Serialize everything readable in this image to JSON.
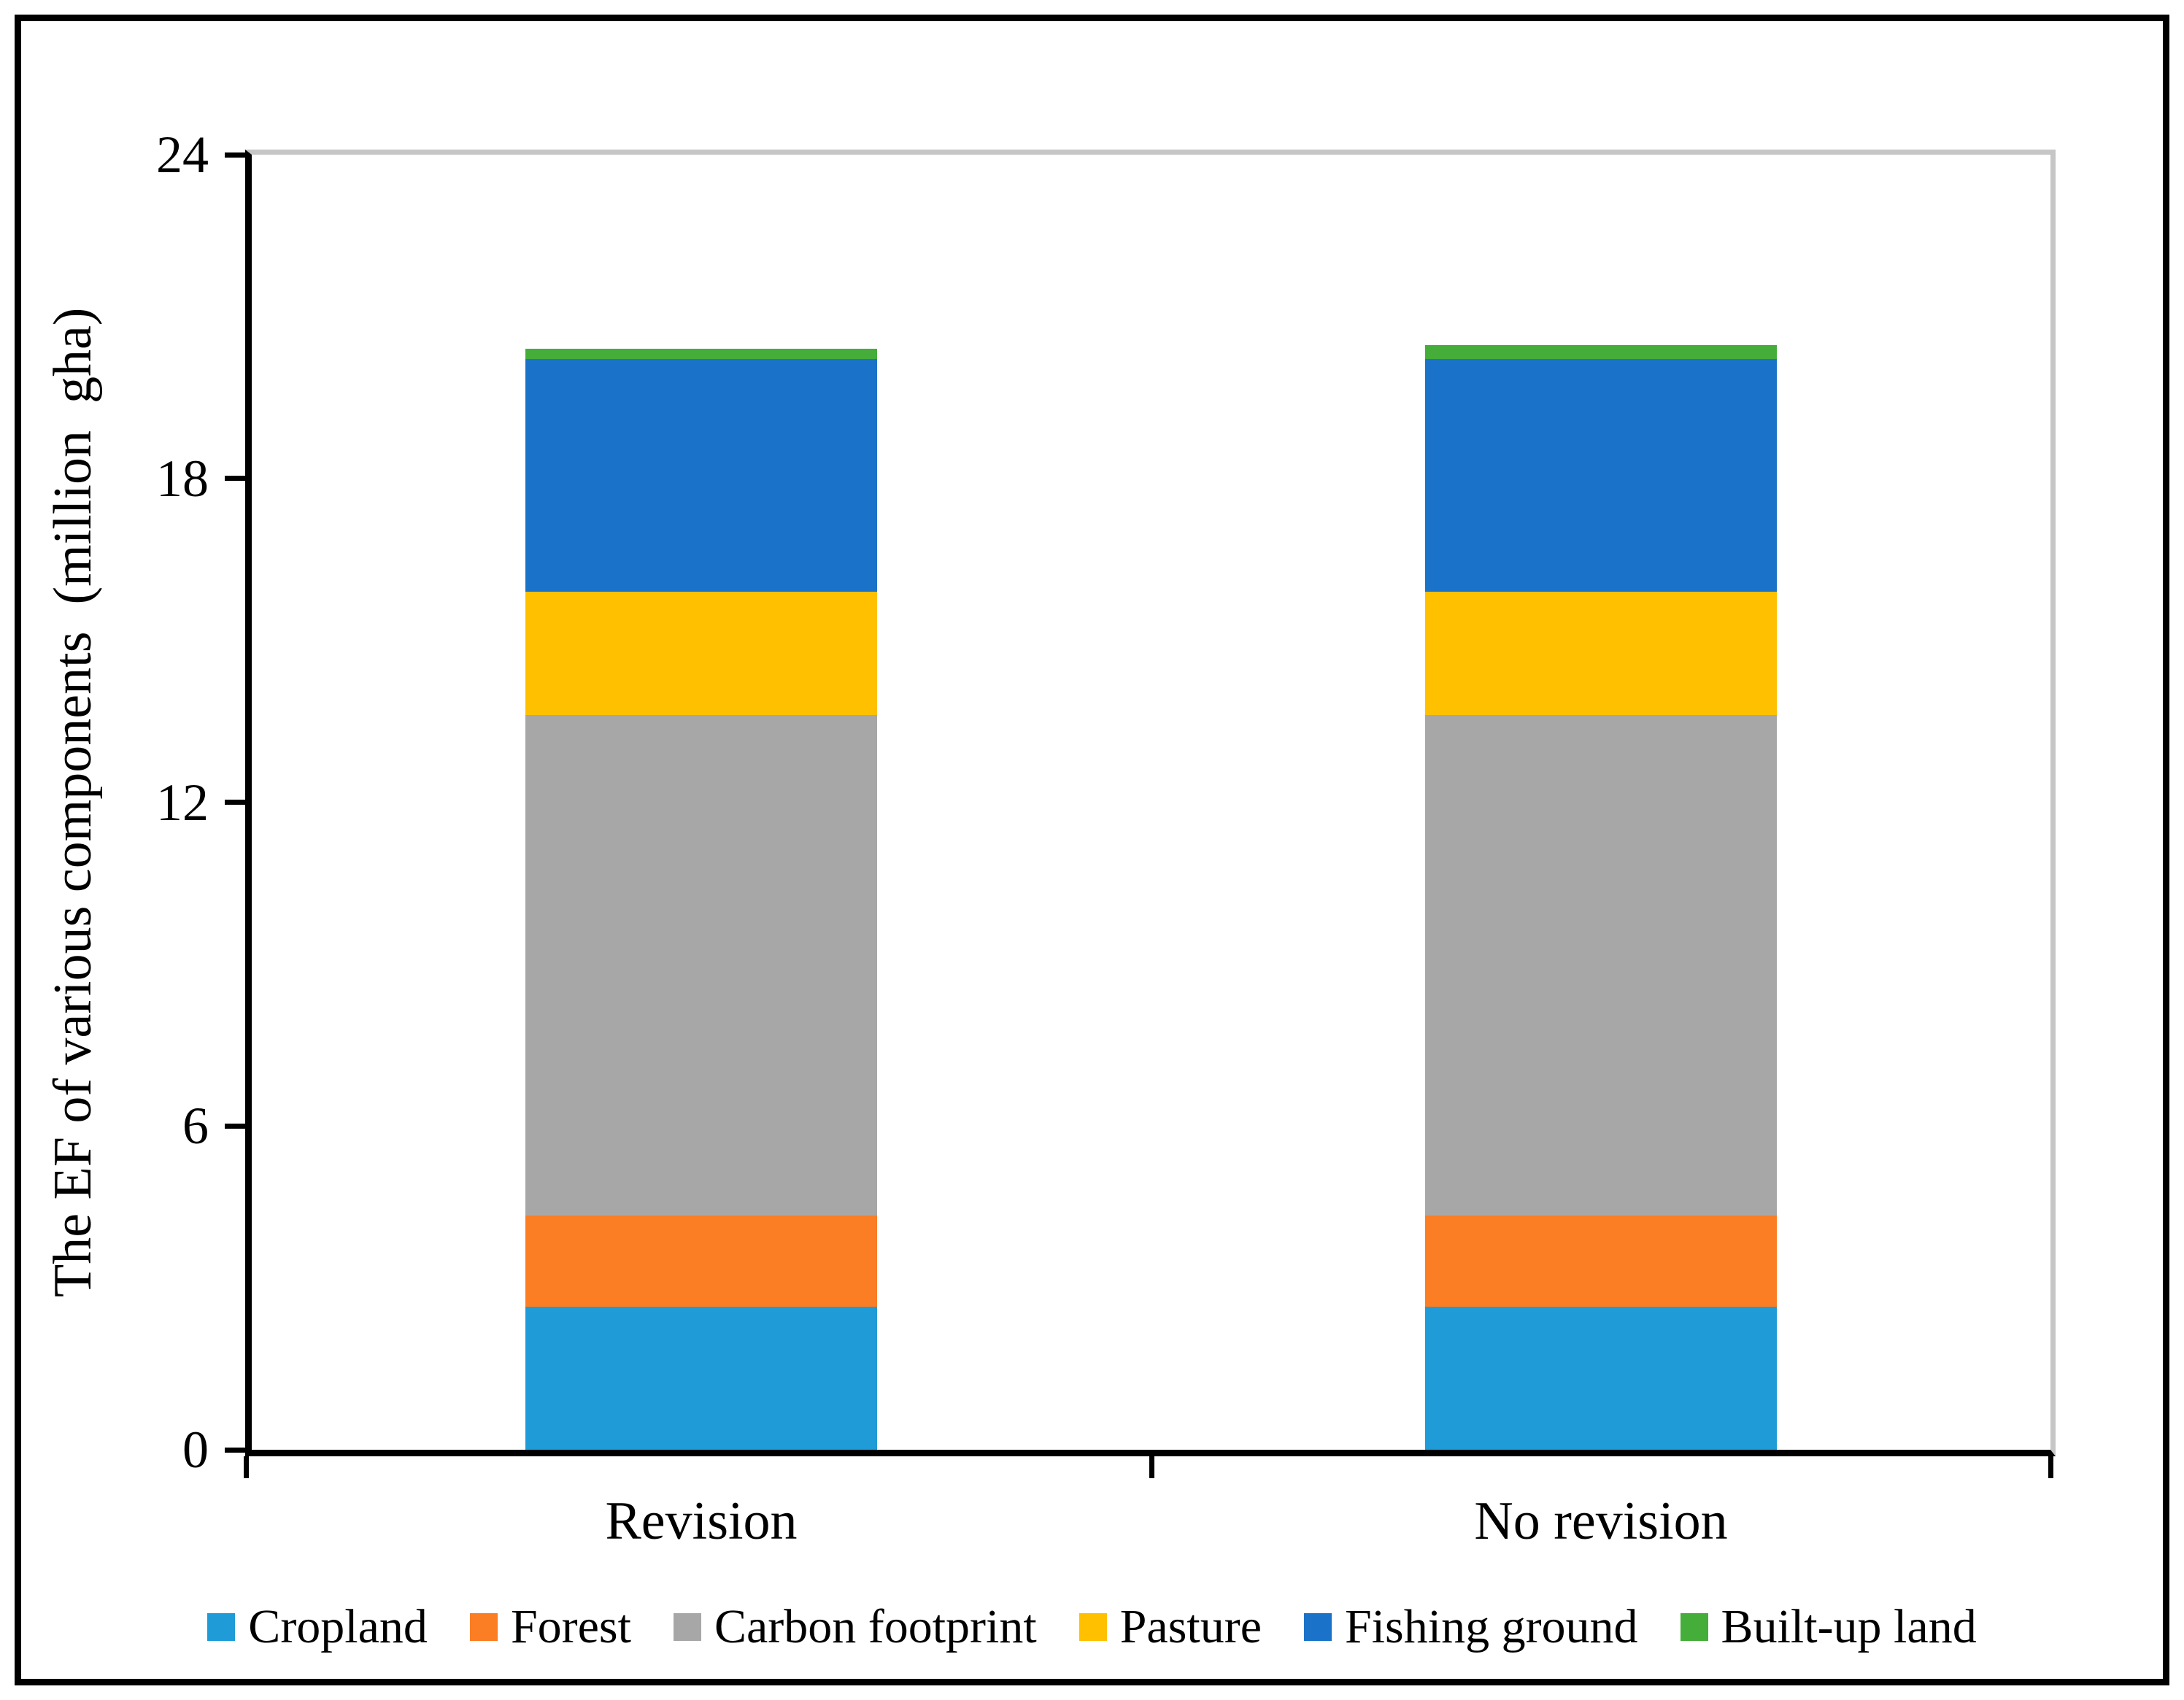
{
  "figure": {
    "border_color": "#000000",
    "plot_border_color": "#C6C6C6",
    "axis_color": "#000000",
    "background": "#FFFFFF"
  },
  "chart_data": {
    "type": "bar",
    "stacked": true,
    "title": "",
    "xlabel": "",
    "ylabel": "The EF of various components  (million  gha)",
    "ylim": [
      0,
      24
    ],
    "yticks": [
      0,
      6,
      12,
      18,
      24
    ],
    "grid": false,
    "legend_position": "bottom",
    "categories": [
      "Revision",
      "No revision"
    ],
    "series": [
      {
        "name": "Cropland",
        "color": "#1F9BD8",
        "values": [
          2.65,
          2.65
        ]
      },
      {
        "name": "Forest",
        "color": "#FB7D24",
        "values": [
          1.69,
          1.69
        ]
      },
      {
        "name": "Carbon footprint",
        "color": "#A7A7A7",
        "values": [
          9.28,
          9.28
        ]
      },
      {
        "name": "Pasture",
        "color": "#FFC000",
        "values": [
          2.28,
          2.28
        ]
      },
      {
        "name": "Fishing ground",
        "color": "#1B73C9",
        "values": [
          4.31,
          4.31
        ]
      },
      {
        "name": "Built-up land",
        "color": "#45AD3A",
        "values": [
          0.19,
          0.26
        ]
      }
    ],
    "totals": [
      20.4,
      20.47
    ]
  }
}
